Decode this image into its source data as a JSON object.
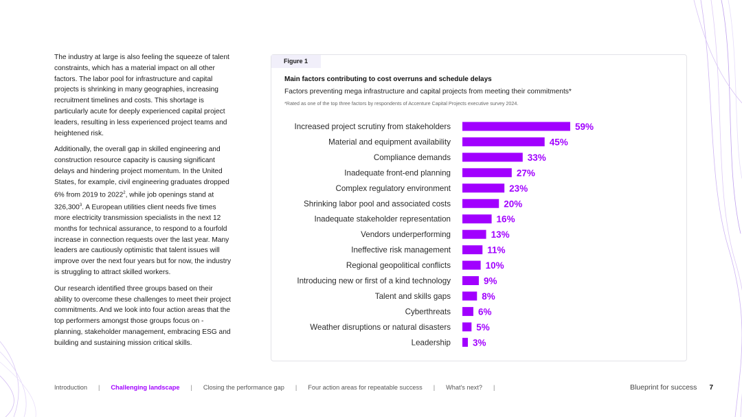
{
  "left_text": {
    "p1": "The industry at large is also feeling the squeeze of talent constraints, which has a material impact on all other factors. The labor pool for infrastructure and capital projects is shrinking in many geographies, increasing recruitment timelines and costs. This shortage is particularly acute for deeply experienced capital project leaders, resulting in less experienced project teams and heightened risk.",
    "p2a": "Additionally, the overall gap in skilled engineering and construction resource capacity is causing significant delays and hindering project momentum. In the United States, for example, civil engineering graduates dropped 6% from 2019 to 2022",
    "p2_sup1": "2",
    "p2b": ", while job openings stand at 326,300",
    "p2_sup2": "3",
    "p2c": ". A European utilities client needs five times more electricity transmission specialists in the next 12 months for technical assurance, to respond to a fourfold increase in connection requests over the last year. Many leaders are cautiously optimistic that talent issues will improve over the next four years but for now, the industry is struggling to attract skilled workers.",
    "p3": "Our research identified three groups based on their ability to overcome these challenges to meet their project commitments.  And we look into four action areas that the top performers amongst those groups focus on - planning, stakeholder management, embracing ESG and building and sustaining mission critical skills."
  },
  "figure": {
    "label": "Figure 1",
    "title": "Main factors contributing to cost overruns and schedule delays",
    "subtitle": "Factors preventing mega infrastructure and capital projects from meeting their commitments*",
    "note": "*Rated as one of the top three factors by respondents of Accenture Capital Projects executive survey 2024."
  },
  "chart_data": {
    "type": "bar",
    "orientation": "horizontal",
    "title": "Main factors contributing to cost overruns and schedule delays",
    "unit": "%",
    "color": "#a100ff",
    "categories": [
      "Increased project scrutiny from stakeholders",
      "Material and equipment availability",
      "Compliance demands",
      "Inadequate front-end planning",
      "Complex regulatory environment",
      "Shrinking labor pool and associated costs",
      "Inadequate stakeholder representation",
      "Vendors underperforming",
      "Ineffective risk management",
      "Regional geopolitical conflicts",
      "Introducing new or first of a kind technology",
      "Talent and skills gaps",
      "Cyberthreats",
      "Weather disruptions or natural disasters",
      "Leadership"
    ],
    "values": [
      59,
      45,
      33,
      27,
      23,
      20,
      16,
      13,
      11,
      10,
      9,
      8,
      6,
      5,
      3
    ],
    "labels": [
      "59%",
      "45%",
      "33%",
      "27%",
      "23%",
      "20%",
      "16%",
      "13%",
      "11%",
      "10%",
      "9%",
      "8%",
      "6%",
      "5%",
      "3%"
    ]
  },
  "footer": {
    "nav": [
      {
        "label": "Introduction",
        "active": false
      },
      {
        "label": "Challenging landscape",
        "active": true
      },
      {
        "label": "Closing the performance gap",
        "active": false
      },
      {
        "label": "Four action areas for repeatable success",
        "active": false
      },
      {
        "label": "What's next?",
        "active": false
      }
    ],
    "separator": "|",
    "doc_title": "Blueprint for success",
    "page_number": "7"
  }
}
